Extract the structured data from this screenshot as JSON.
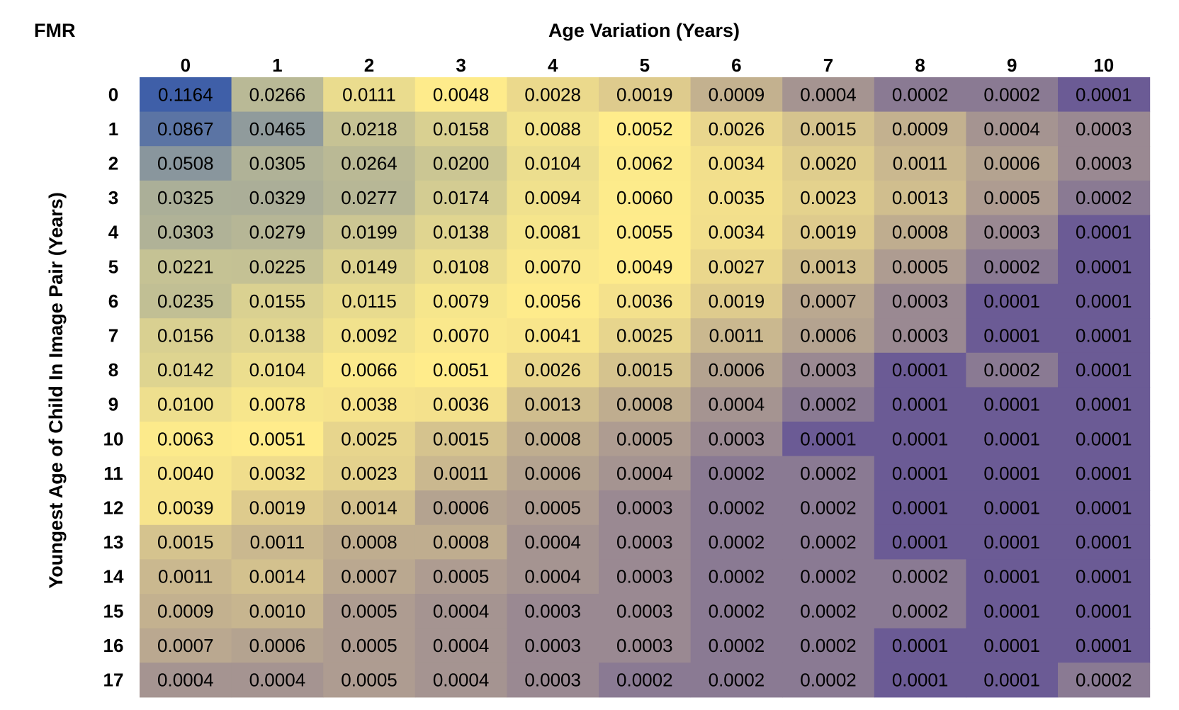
{
  "chart_data": {
    "type": "heatmap",
    "corner_label": "FMR",
    "xlabel": "Age Variation (Years)",
    "ylabel": "Youngest Age of Child In Image Pair (Years)",
    "x": [
      "0",
      "1",
      "2",
      "3",
      "4",
      "5",
      "6",
      "7",
      "8",
      "9",
      "10"
    ],
    "y": [
      "0",
      "1",
      "2",
      "3",
      "4",
      "5",
      "6",
      "7",
      "8",
      "9",
      "10",
      "11",
      "12",
      "13",
      "14",
      "15",
      "16",
      "17"
    ],
    "values": [
      [
        "0.1164",
        "0.0266",
        "0.0111",
        "0.0048",
        "0.0028",
        "0.0019",
        "0.0009",
        "0.0004",
        "0.0002",
        "0.0002",
        "0.0001"
      ],
      [
        "0.0867",
        "0.0465",
        "0.0218",
        "0.0158",
        "0.0088",
        "0.0052",
        "0.0026",
        "0.0015",
        "0.0009",
        "0.0004",
        "0.0003"
      ],
      [
        "0.0508",
        "0.0305",
        "0.0264",
        "0.0200",
        "0.0104",
        "0.0062",
        "0.0034",
        "0.0020",
        "0.0011",
        "0.0006",
        "0.0003"
      ],
      [
        "0.0325",
        "0.0329",
        "0.0277",
        "0.0174",
        "0.0094",
        "0.0060",
        "0.0035",
        "0.0023",
        "0.0013",
        "0.0005",
        "0.0002"
      ],
      [
        "0.0303",
        "0.0279",
        "0.0199",
        "0.0138",
        "0.0081",
        "0.0055",
        "0.0034",
        "0.0019",
        "0.0008",
        "0.0003",
        "0.0001"
      ],
      [
        "0.0221",
        "0.0225",
        "0.0149",
        "0.0108",
        "0.0070",
        "0.0049",
        "0.0027",
        "0.0013",
        "0.0005",
        "0.0002",
        "0.0001"
      ],
      [
        "0.0235",
        "0.0155",
        "0.0115",
        "0.0079",
        "0.0056",
        "0.0036",
        "0.0019",
        "0.0007",
        "0.0003",
        "0.0001",
        "0.0001"
      ],
      [
        "0.0156",
        "0.0138",
        "0.0092",
        "0.0070",
        "0.0041",
        "0.0025",
        "0.0011",
        "0.0006",
        "0.0003",
        "0.0001",
        "0.0001"
      ],
      [
        "0.0142",
        "0.0104",
        "0.0066",
        "0.0051",
        "0.0026",
        "0.0015",
        "0.0006",
        "0.0003",
        "0.0001",
        "0.0002",
        "0.0001"
      ],
      [
        "0.0100",
        "0.0078",
        "0.0038",
        "0.0036",
        "0.0013",
        "0.0008",
        "0.0004",
        "0.0002",
        "0.0001",
        "0.0001",
        "0.0001"
      ],
      [
        "0.0063",
        "0.0051",
        "0.0025",
        "0.0015",
        "0.0008",
        "0.0005",
        "0.0003",
        "0.0001",
        "0.0001",
        "0.0001",
        "0.0001"
      ],
      [
        "0.0040",
        "0.0032",
        "0.0023",
        "0.0011",
        "0.0006",
        "0.0004",
        "0.0002",
        "0.0002",
        "0.0001",
        "0.0001",
        "0.0001"
      ],
      [
        "0.0039",
        "0.0019",
        "0.0014",
        "0.0006",
        "0.0005",
        "0.0003",
        "0.0002",
        "0.0002",
        "0.0001",
        "0.0001",
        "0.0001"
      ],
      [
        "0.0015",
        "0.0011",
        "0.0008",
        "0.0008",
        "0.0004",
        "0.0003",
        "0.0002",
        "0.0002",
        "0.0001",
        "0.0001",
        "0.0001"
      ],
      [
        "0.0011",
        "0.0014",
        "0.0007",
        "0.0005",
        "0.0004",
        "0.0003",
        "0.0002",
        "0.0002",
        "0.0002",
        "0.0001",
        "0.0001"
      ],
      [
        "0.0009",
        "0.0010",
        "0.0005",
        "0.0004",
        "0.0003",
        "0.0003",
        "0.0002",
        "0.0002",
        "0.0002",
        "0.0001",
        "0.0001"
      ],
      [
        "0.0007",
        "0.0006",
        "0.0005",
        "0.0004",
        "0.0003",
        "0.0003",
        "0.0002",
        "0.0002",
        "0.0001",
        "0.0001",
        "0.0001"
      ],
      [
        "0.0004",
        "0.0004",
        "0.0005",
        "0.0004",
        "0.0003",
        "0.0002",
        "0.0002",
        "0.0002",
        "0.0001",
        "0.0001",
        "0.0002"
      ]
    ],
    "color_scale": {
      "low": "#6b5b95",
      "mid": "#ffec8b",
      "high": "#3f5fa8"
    },
    "grid": false,
    "legend": "none"
  }
}
